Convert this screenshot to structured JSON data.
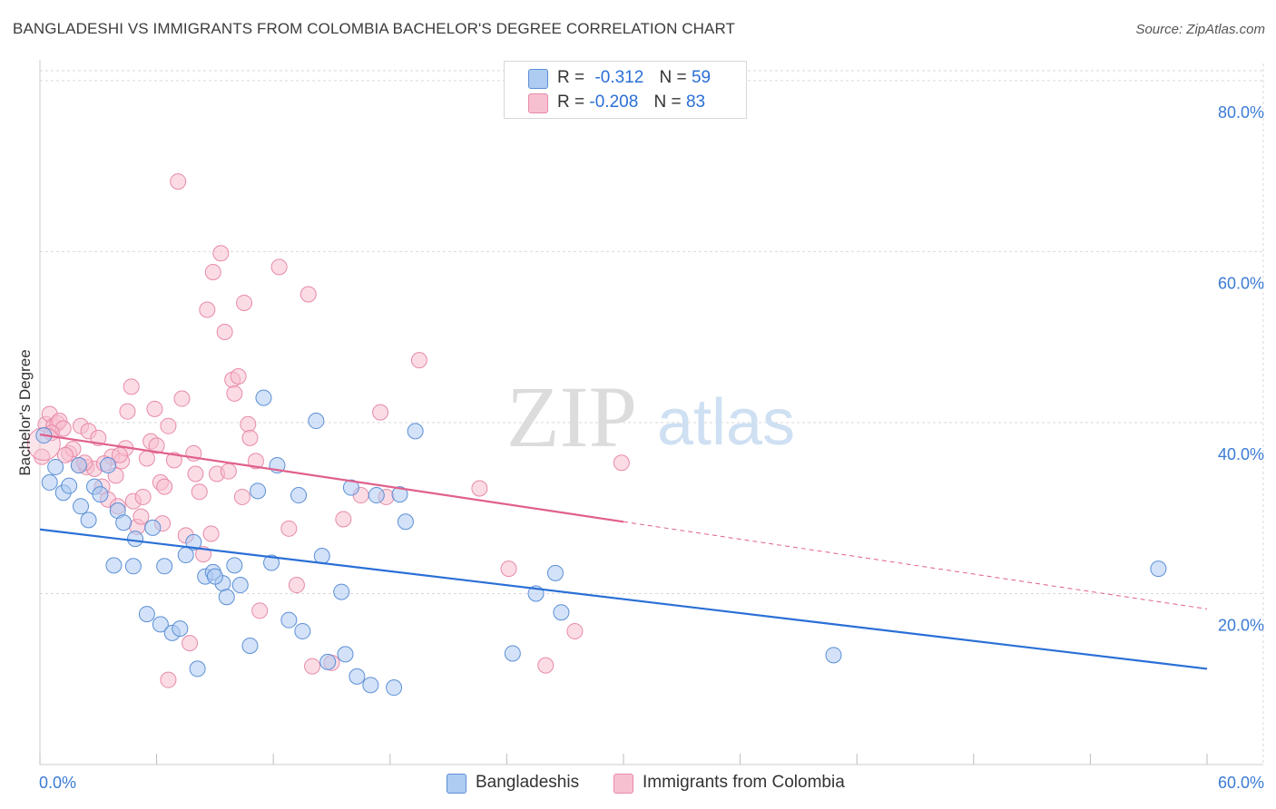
{
  "title": "BANGLADESHI VS IMMIGRANTS FROM COLOMBIA BACHELOR'S DEGREE CORRELATION CHART",
  "source": "Source: ZipAtlas.com",
  "watermark": {
    "zip": "ZIP",
    "atlas": "atlas"
  },
  "legend": {
    "rows": [
      {
        "r_label": "R =",
        "r_value": "-0.312",
        "n_label": "N =",
        "n_value": "59"
      },
      {
        "r_label": "R =",
        "r_value": "-0.208",
        "n_label": "N =",
        "n_value": "83"
      }
    ]
  },
  "bottom_legend": [
    "Bangladeshis",
    "Immigrants from Colombia"
  ],
  "colors": {
    "blue_fill": "#aecbf2",
    "blue_stroke": "#5b8fd6",
    "blue_line": "#2a6fd6",
    "pink_fill": "#f7c0d0",
    "pink_stroke": "#e88aa8",
    "pink_line": "#e0608b",
    "axis_text": "#3a7bd5",
    "grid": "#d9d9d9"
  },
  "chart_data": {
    "type": "scatter",
    "title": "BANGLADESHI VS IMMIGRANTS FROM COLOMBIA BACHELOR'S DEGREE CORRELATION CHART",
    "xlabel": "",
    "ylabel": "Bachelor's Degree",
    "xlim": [
      0,
      60
    ],
    "ylim": [
      0,
      82
    ],
    "x_tick_labels": [
      "0.0%",
      "60.0%"
    ],
    "y_tick_labels": [
      {
        "value": 20,
        "label": "20.0%"
      },
      {
        "value": 40,
        "label": "40.0%"
      },
      {
        "value": 60,
        "label": "60.0%"
      },
      {
        "value": 80,
        "label": "80.0%"
      }
    ],
    "series": [
      {
        "name": "Bangladeshis",
        "r": -0.312,
        "n": 59,
        "trend": {
          "x0": 0,
          "y0": 27.5,
          "x1": 60,
          "y1": 11.2,
          "dashed_from": null
        },
        "points": [
          [
            0.2,
            38.5
          ],
          [
            0.5,
            33.0
          ],
          [
            0.8,
            34.8
          ],
          [
            1.2,
            31.8
          ],
          [
            1.5,
            32.6
          ],
          [
            2.0,
            35.0
          ],
          [
            2.1,
            30.2
          ],
          [
            2.5,
            28.6
          ],
          [
            2.8,
            32.5
          ],
          [
            3.1,
            31.6
          ],
          [
            3.5,
            35.0
          ],
          [
            3.8,
            23.3
          ],
          [
            4.0,
            29.7
          ],
          [
            4.3,
            28.3
          ],
          [
            4.8,
            23.2
          ],
          [
            4.9,
            26.4
          ],
          [
            5.5,
            17.6
          ],
          [
            5.8,
            27.7
          ],
          [
            6.2,
            16.4
          ],
          [
            6.4,
            23.2
          ],
          [
            6.8,
            15.4
          ],
          [
            7.2,
            15.9
          ],
          [
            7.5,
            24.5
          ],
          [
            7.9,
            26.0
          ],
          [
            8.1,
            11.2
          ],
          [
            8.5,
            22.0
          ],
          [
            8.9,
            22.5
          ],
          [
            9.4,
            21.2
          ],
          [
            9.6,
            19.6
          ],
          [
            10.0,
            23.3
          ],
          [
            10.3,
            21.0
          ],
          [
            10.8,
            13.9
          ],
          [
            11.2,
            32.0
          ],
          [
            11.5,
            42.9
          ],
          [
            11.9,
            23.6
          ],
          [
            12.2,
            35.0
          ],
          [
            12.8,
            16.9
          ],
          [
            13.3,
            31.5
          ],
          [
            13.5,
            15.6
          ],
          [
            14.2,
            40.2
          ],
          [
            14.5,
            24.4
          ],
          [
            14.8,
            12.0
          ],
          [
            15.5,
            20.2
          ],
          [
            15.7,
            12.9
          ],
          [
            16.0,
            32.4
          ],
          [
            16.3,
            10.3
          ],
          [
            17.0,
            9.3
          ],
          [
            17.3,
            31.5
          ],
          [
            18.2,
            9.0
          ],
          [
            18.5,
            31.6
          ],
          [
            18.8,
            28.4
          ],
          [
            19.3,
            39.0
          ],
          [
            24.3,
            13.0
          ],
          [
            25.5,
            20.0
          ],
          [
            26.5,
            22.4
          ],
          [
            26.8,
            17.8
          ],
          [
            40.8,
            12.8
          ],
          [
            57.5,
            22.9
          ],
          [
            9.0,
            22.0
          ]
        ]
      },
      {
        "name": "Immigrants from Colombia",
        "r": -0.208,
        "n": 83,
        "trend": {
          "x0": 0,
          "y0": 38.6,
          "x1": 30,
          "y1": 28.4,
          "dashed_to_x": 60,
          "dashed_to_y": 18.2
        },
        "points": [
          [
            0.1,
            36.0
          ],
          [
            0.3,
            39.8
          ],
          [
            0.5,
            41.0
          ],
          [
            0.7,
            39.6
          ],
          [
            0.9,
            39.9
          ],
          [
            1.0,
            40.2
          ],
          [
            1.2,
            39.3
          ],
          [
            1.5,
            36.4
          ],
          [
            1.7,
            36.9
          ],
          [
            2.0,
            35.0
          ],
          [
            2.1,
            39.6
          ],
          [
            2.4,
            34.8
          ],
          [
            2.5,
            39.0
          ],
          [
            2.8,
            34.6
          ],
          [
            3.0,
            38.2
          ],
          [
            3.2,
            32.5
          ],
          [
            3.5,
            31.0
          ],
          [
            3.7,
            36.0
          ],
          [
            3.9,
            33.8
          ],
          [
            4.0,
            30.2
          ],
          [
            4.2,
            35.5
          ],
          [
            4.4,
            37.0
          ],
          [
            4.5,
            41.3
          ],
          [
            4.7,
            44.2
          ],
          [
            4.8,
            30.8
          ],
          [
            5.0,
            27.8
          ],
          [
            5.2,
            29.0
          ],
          [
            5.3,
            31.3
          ],
          [
            5.5,
            35.8
          ],
          [
            5.7,
            37.8
          ],
          [
            5.9,
            41.6
          ],
          [
            6.0,
            37.3
          ],
          [
            6.2,
            33.0
          ],
          [
            6.4,
            32.5
          ],
          [
            6.6,
            39.6
          ],
          [
            6.9,
            35.6
          ],
          [
            7.1,
            68.2
          ],
          [
            7.3,
            42.8
          ],
          [
            7.5,
            26.8
          ],
          [
            7.7,
            14.2
          ],
          [
            7.9,
            36.4
          ],
          [
            8.0,
            34.0
          ],
          [
            8.2,
            31.9
          ],
          [
            8.4,
            24.6
          ],
          [
            8.6,
            53.2
          ],
          [
            8.9,
            57.6
          ],
          [
            9.1,
            34.0
          ],
          [
            9.3,
            59.8
          ],
          [
            9.5,
            50.6
          ],
          [
            9.7,
            34.3
          ],
          [
            9.9,
            45.0
          ],
          [
            10.0,
            43.4
          ],
          [
            10.2,
            45.4
          ],
          [
            10.4,
            31.3
          ],
          [
            10.5,
            54.0
          ],
          [
            10.7,
            39.8
          ],
          [
            10.8,
            38.2
          ],
          [
            11.1,
            35.5
          ],
          [
            11.3,
            18.0
          ],
          [
            12.3,
            58.2
          ],
          [
            12.8,
            27.6
          ],
          [
            13.2,
            21.0
          ],
          [
            13.8,
            55.0
          ],
          [
            14.0,
            11.5
          ],
          [
            15.0,
            11.9
          ],
          [
            15.6,
            28.7
          ],
          [
            16.5,
            31.5
          ],
          [
            17.5,
            41.2
          ],
          [
            17.8,
            31.3
          ],
          [
            19.5,
            47.3
          ],
          [
            22.6,
            32.3
          ],
          [
            24.1,
            22.9
          ],
          [
            26.0,
            11.6
          ],
          [
            27.5,
            15.6
          ],
          [
            29.9,
            35.3
          ],
          [
            6.6,
            9.9
          ],
          [
            2.3,
            35.3
          ],
          [
            0.6,
            38.8
          ],
          [
            1.3,
            36.2
          ],
          [
            3.3,
            35.2
          ],
          [
            4.1,
            36.2
          ],
          [
            6.3,
            28.2
          ],
          [
            8.8,
            27.0
          ]
        ]
      }
    ]
  }
}
